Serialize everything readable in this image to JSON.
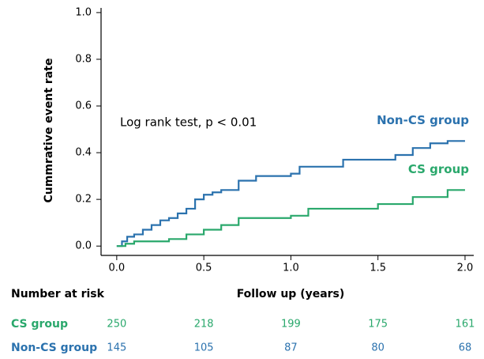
{
  "chart_data": {
    "type": "step",
    "annotation": "Log rank test, p < 0.01",
    "xlabel": "Follow up (years)",
    "ylabel": "Cummrative event rate",
    "xlim": [
      -0.09,
      2.05
    ],
    "ylim": [
      -0.04,
      1.02
    ],
    "xticks": [
      {
        "value": 0,
        "label": "0.0"
      },
      0.5,
      {
        "value": 1,
        "label": "1.0"
      },
      1.5,
      {
        "value": 2,
        "label": "2.0"
      }
    ],
    "yticks": [
      {
        "value": 0,
        "label": "0.0"
      },
      0.2,
      0.4,
      0.6,
      0.8,
      {
        "value": 1,
        "label": "1.0"
      }
    ],
    "series": [
      {
        "name": "Non-CS group",
        "color": "#2b72ae",
        "x": [
          0,
          0.03,
          0.06,
          0.1,
          0.15,
          0.2,
          0.25,
          0.3,
          0.35,
          0.4,
          0.45,
          0.5,
          0.55,
          0.6,
          0.7,
          0.8,
          1.0,
          1.05,
          1.3,
          1.6,
          1.7,
          1.8,
          1.9,
          2.0
        ],
        "values": [
          0,
          0.02,
          0.04,
          0.05,
          0.07,
          0.09,
          0.11,
          0.12,
          0.14,
          0.16,
          0.2,
          0.22,
          0.23,
          0.24,
          0.28,
          0.3,
          0.31,
          0.34,
          0.37,
          0.39,
          0.42,
          0.44,
          0.45,
          0.45
        ]
      },
      {
        "name": "CS group",
        "color": "#2aa86c",
        "x": [
          0,
          0.05,
          0.1,
          0.3,
          0.4,
          0.5,
          0.6,
          0.7,
          1.0,
          1.1,
          1.5,
          1.7,
          1.9,
          2.0
        ],
        "values": [
          0,
          0.01,
          0.02,
          0.03,
          0.05,
          0.07,
          0.09,
          0.12,
          0.13,
          0.16,
          0.18,
          0.21,
          0.24,
          0.24
        ]
      }
    ],
    "risk_table": {
      "title": "Number at risk",
      "rows": [
        {
          "name": "CS group",
          "color": "#2aa86c",
          "values": [
            250,
            218,
            199,
            175,
            161
          ]
        },
        {
          "name": "Non-CS group",
          "color": "#2b72ae",
          "values": [
            145,
            105,
            87,
            80,
            68
          ]
        }
      ]
    }
  }
}
